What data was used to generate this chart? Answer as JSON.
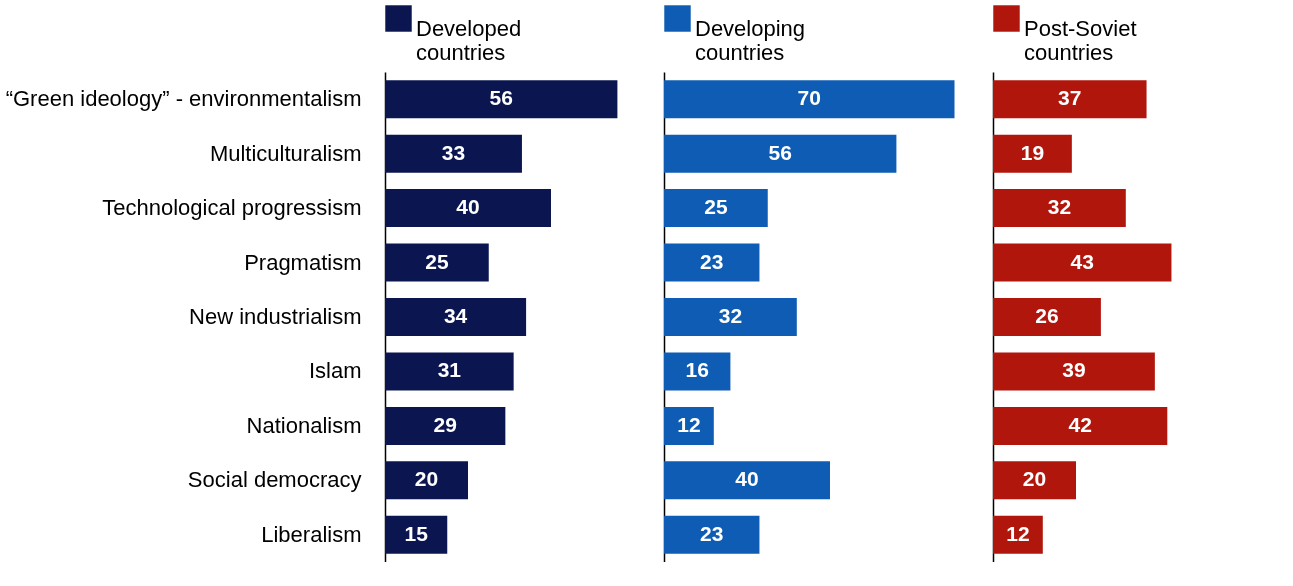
{
  "chart_data": [
    {
      "type": "bar",
      "orientation": "horizontal",
      "data_labels": true,
      "legend": "top",
      "tick_labels": "y",
      "grid": false,
      "categories": [
        "“Green ideology” - environmentalism",
        "Multiculturalism",
        "Technological progressism",
        "Pragmatism",
        "New industrialism",
        "Islam",
        "Nationalism",
        "Social democracy",
        "Liberalism"
      ],
      "series": [
        {
          "name": "Developed countries",
          "color": "#0b1650",
          "values": [
            56,
            33,
            40,
            25,
            34,
            31,
            29,
            20,
            15
          ]
        }
      ]
    },
    {
      "type": "bar",
      "orientation": "horizontal",
      "data_labels": true,
      "legend": "top",
      "tick_labels": false,
      "grid": false,
      "categories": [
        null,
        null,
        null,
        null,
        null,
        null,
        null,
        null,
        null
      ],
      "series": [
        {
          "name": "Developing countries",
          "color": "#0e5cb4",
          "values": [
            70,
            56,
            25,
            23,
            32,
            16,
            12,
            40,
            23
          ]
        }
      ]
    },
    {
      "type": "bar",
      "orientation": "horizontal",
      "data_labels": true,
      "legend": "top",
      "tick_labels": false,
      "grid": false,
      "categories": [
        null,
        null,
        null,
        null,
        null,
        null,
        null,
        null,
        null
      ],
      "series": [
        {
          "name": "Post-Soviet countries",
          "color": "#b0160c",
          "values": [
            37,
            19,
            32,
            43,
            26,
            39,
            42,
            20,
            12
          ]
        }
      ]
    }
  ]
}
